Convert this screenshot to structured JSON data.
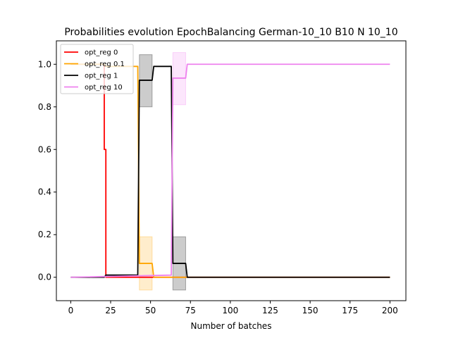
{
  "chart_data": {
    "type": "line",
    "title": "Probabilities evolution EpochBalancing German-10_10 B10 N 10_10",
    "xlabel": "Number of batches",
    "ylabel": "",
    "xlim": [
      -9,
      210
    ],
    "ylim": [
      -0.11,
      1.11
    ],
    "xticks": [
      0,
      25,
      50,
      75,
      100,
      125,
      150,
      175,
      200
    ],
    "yticks": [
      0.0,
      0.2,
      0.4,
      0.6,
      0.8,
      1.0
    ],
    "ytick_labels": [
      "0.0",
      "0.2",
      "0.4",
      "0.6",
      "0.8",
      "1.0"
    ],
    "grid": false,
    "legend_position": "top-left",
    "series": [
      {
        "name": "opt_reg 0",
        "color": "#ff0000",
        "x": [
          0,
          21,
          21,
          22,
          22,
          200
        ],
        "y": [
          1.0,
          1.0,
          0.6,
          0.6,
          0.0,
          0.0
        ]
      },
      {
        "name": "opt_reg 0.1",
        "color": "#ffa500",
        "x": [
          0,
          21,
          22,
          42,
          43,
          51,
          52,
          200
        ],
        "y": [
          1.0,
          1.0,
          0.99,
          0.99,
          0.065,
          0.065,
          0.0,
          0.0
        ],
        "band": {
          "x": [
            43,
            51
          ],
          "lower": [
            -0.06,
            -0.06
          ],
          "upper": [
            0.19,
            0.19
          ]
        }
      },
      {
        "name": "opt_reg 1",
        "color": "#000000",
        "x": [
          0,
          21,
          22,
          42,
          43,
          51,
          52,
          63,
          64,
          72,
          73,
          200
        ],
        "y": [
          0.0,
          0.0,
          0.01,
          0.01,
          0.925,
          0.925,
          0.99,
          0.99,
          0.065,
          0.065,
          0.0,
          0.0
        ],
        "band": {
          "x": [
            43,
            51,
            64,
            72
          ],
          "lower": [
            0.8,
            0.8,
            -0.06,
            -0.06
          ],
          "upper": [
            1.045,
            1.045,
            0.19,
            0.19
          ]
        }
      },
      {
        "name": "opt_reg 10",
        "color": "#ee82ee",
        "x": [
          0,
          63,
          64,
          72,
          73,
          200
        ],
        "y": [
          0.0,
          0.01,
          0.935,
          0.935,
          1.0,
          1.0
        ],
        "band": {
          "x": [
            64,
            72
          ],
          "lower": [
            0.81,
            0.81
          ],
          "upper": [
            1.055,
            1.055
          ]
        }
      }
    ]
  }
}
